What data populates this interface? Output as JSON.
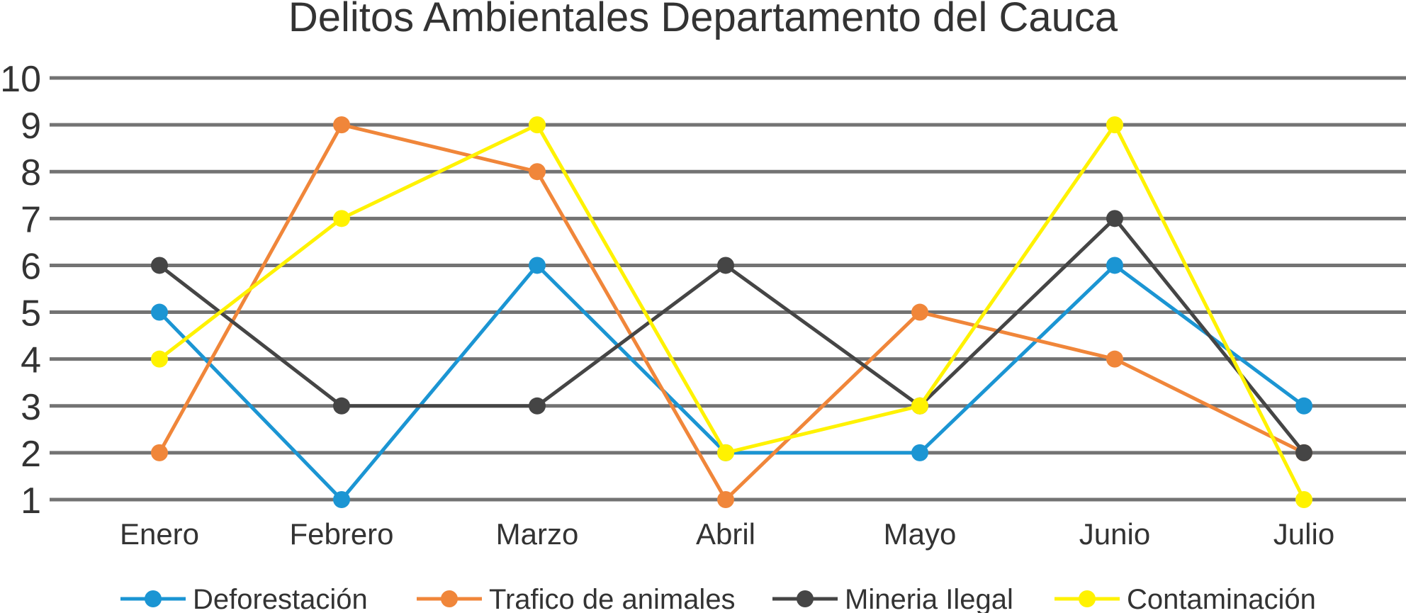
{
  "chart_data": {
    "type": "line",
    "title": "Delitos Ambientales Departamento del Cauca",
    "xlabel": "",
    "ylabel": "",
    "categories": [
      "Enero",
      "Febrero",
      "Marzo",
      "Abril",
      "Mayo",
      "Junio",
      "Julio"
    ],
    "ylim": [
      1,
      10
    ],
    "yticks": [
      1,
      2,
      3,
      4,
      5,
      6,
      7,
      8,
      9,
      10
    ],
    "grid": true,
    "legend": "bottom",
    "series": [
      {
        "name": "Deforestación",
        "color": "#1b95d3",
        "values": [
          5,
          1,
          6,
          2,
          2,
          6,
          3
        ]
      },
      {
        "name": "Trafico de animales",
        "color": "#f0863a",
        "values": [
          2,
          9,
          8,
          1,
          5,
          4,
          2
        ]
      },
      {
        "name": "Mineria Ilegal",
        "color": "#454545",
        "values": [
          6,
          3,
          3,
          6,
          3,
          7,
          2
        ]
      },
      {
        "name": "Contaminación",
        "color": "#fff200",
        "values": [
          4,
          7,
          9,
          2,
          3,
          9,
          1
        ]
      }
    ]
  }
}
